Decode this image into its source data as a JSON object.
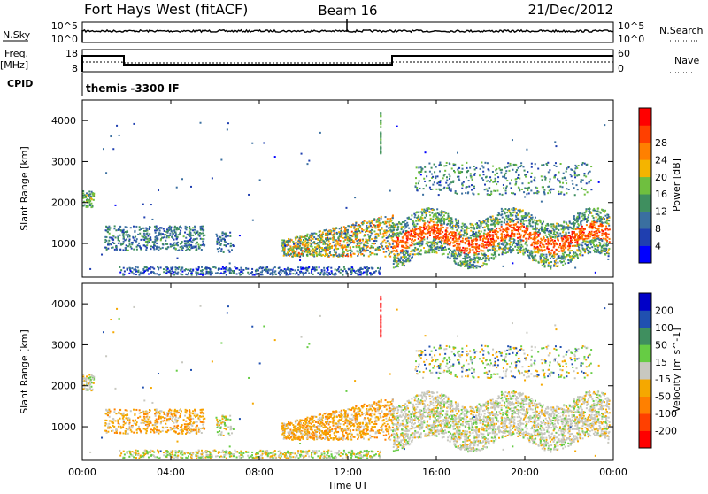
{
  "header": {
    "title": "Fort Hays West (fitACF)",
    "beam": "Beam 16",
    "date": "21/Dec/2012"
  },
  "summary": {
    "nsky_label": "N.Sky",
    "nsearch_label": "N.Search",
    "nsky_tick_top": "10^5",
    "nsky_tick_bottom": "10^0",
    "nsearch_tick_top": "10^5",
    "nsearch_tick_bottom": "10^0",
    "freq_label": "Freq.",
    "freq_unit": "[MHz]",
    "freq_tick_top": "18",
    "freq_tick_bottom": "8",
    "nave_label": "Nave",
    "nave_tick_top": "60",
    "nave_tick_bottom": "0",
    "cpid_label": "CPID",
    "cpid_value": "themis -3300 IF"
  },
  "colors": {
    "power_scale": [
      "#0000ff",
      "#1f3fb0",
      "#3a6fa0",
      "#3f8f5f",
      "#6fbf3f",
      "#f4b400",
      "#ff8000",
      "#ff4000",
      "#ff0000"
    ],
    "velocity_scale": [
      "#ff0000",
      "#ff4000",
      "#ff8000",
      "#f5a800",
      "#c8c8c0",
      "#66cc44",
      "#3f8f5f",
      "#2050b0",
      "#0000c8"
    ]
  },
  "chart_data": [
    {
      "type": "heatmap",
      "name": "power",
      "ylabel": "Slant Range [km]",
      "ylim": [
        180,
        4500
      ],
      "yticks": [
        "1000",
        "2000",
        "3000",
        "4000"
      ],
      "colorbar_label": "Power [dB]",
      "colorbar_ticks": [
        "4",
        "8",
        "12",
        "16",
        "20",
        "24",
        "28"
      ],
      "clim": [
        0,
        30
      ]
    },
    {
      "type": "heatmap",
      "name": "velocity",
      "ylabel": "Slant Range [km]",
      "ylim": [
        180,
        4500
      ],
      "yticks": [
        "1000",
        "2000",
        "3000",
        "4000"
      ],
      "colorbar_label": "Velocity [m s^-1]",
      "colorbar_ticks": [
        "200",
        "100",
        "50",
        "15",
        "-15",
        "-50",
        "-100",
        "-200"
      ],
      "clim": [
        -250,
        250
      ]
    }
  ],
  "xaxis": {
    "label": "Time UT",
    "ticks": [
      "00:00",
      "04:00",
      "08:00",
      "12:00",
      "16:00",
      "20:00",
      "00:00"
    ],
    "xlim_hours": [
      0,
      24
    ]
  }
}
